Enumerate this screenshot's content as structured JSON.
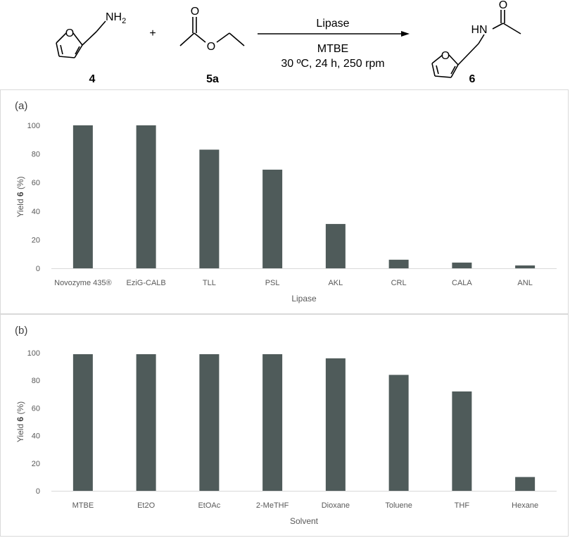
{
  "scheme": {
    "reactant1_label": "4",
    "reactant1_group": "NH",
    "reactant1_sub": "2",
    "plus": "+",
    "reactant2_label": "5a",
    "reagent_top": "Lipase",
    "reagent_mid": "MTBE",
    "reagent_bottom": "30 ºC, 24 h, 250 rpm",
    "product_label": "6",
    "product_group": "HN",
    "atom_o": "O"
  },
  "chart_data": [
    {
      "type": "bar",
      "panel_label": "(a)",
      "categories": [
        "Novozyme 435®",
        "EziG-CALB",
        "TLL",
        "PSL",
        "AKL",
        "CRL",
        "CALA",
        "ANL"
      ],
      "values": [
        100,
        100,
        83,
        69,
        31,
        6,
        4,
        2
      ],
      "xlabel": "Lipase",
      "ylabel_prefix": "Yield ",
      "ylabel_bold": "6",
      "ylabel_suffix": " (%)",
      "ylim": [
        0,
        100
      ],
      "yticks": [
        0,
        20,
        40,
        60,
        80,
        100
      ],
      "grid": false,
      "bar_color": "#4f5b5a"
    },
    {
      "type": "bar",
      "panel_label": "(b)",
      "categories": [
        "MTBE",
        "Et2O",
        "EtOAc",
        "2-MeTHF",
        "Dioxane",
        "Toluene",
        "THF",
        "Hexane"
      ],
      "values": [
        99,
        99,
        99,
        99,
        96,
        84,
        72,
        10
      ],
      "xlabel": "Solvent",
      "ylabel_prefix": "Yield ",
      "ylabel_bold": "6",
      "ylabel_suffix": " (%)",
      "ylim": [
        0,
        100
      ],
      "yticks": [
        0,
        20,
        40,
        60,
        80,
        100
      ],
      "grid": false,
      "bar_color": "#4f5b5a"
    }
  ]
}
